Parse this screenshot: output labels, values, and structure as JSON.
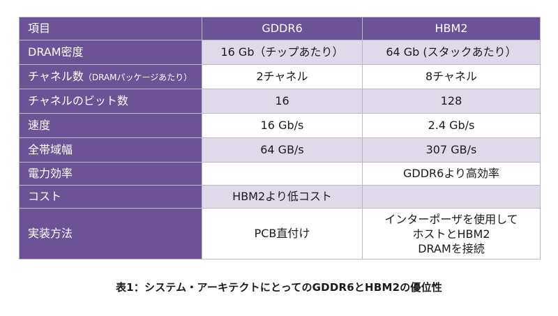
{
  "table": {
    "header": {
      "item": "項目",
      "col1": "GDDR6",
      "col2": "HBM2"
    },
    "colors": {
      "header_bg": "#6b5396",
      "shaded_row_bg": "#dfd9ea",
      "plain_row_bg": "#ffffff",
      "header_text": "#ffffff"
    },
    "rows": [
      {
        "label": "DRAM密度",
        "label_note": "",
        "gddr6": "16 Gb（チップあたり）",
        "hbm2": "64 Gb (スタックあたり）"
      },
      {
        "label": "チャネル数",
        "label_note": "（DRAMパッケージあたり）",
        "gddr6": "2チャネル",
        "hbm2": "8チャネル"
      },
      {
        "label": "チャネルのビット数",
        "label_note": "",
        "gddr6": "16",
        "hbm2": "128"
      },
      {
        "label": "速度",
        "label_note": "",
        "gddr6": "16 Gb/s",
        "hbm2": "2.4 Gb/s"
      },
      {
        "label": "全帯域幅",
        "label_note": "",
        "gddr6": "64 GB/s",
        "hbm2": "307 GB/s"
      },
      {
        "label": "電力効率",
        "label_note": "",
        "gddr6": "",
        "hbm2": "GDDR6より高効率"
      },
      {
        "label": "コスト",
        "label_note": "",
        "gddr6": "HBM2より低コスト",
        "hbm2": ""
      },
      {
        "label": "実装方法",
        "label_note": "",
        "gddr6": "PCB直付け",
        "hbm2_lines": [
          "インターポーザを使用して",
          "ホストとHBM2",
          "DRAMを接続"
        ]
      }
    ]
  },
  "caption": "表1：システム・アーキテクトにとってのGDDR6とHBM2の優位性"
}
